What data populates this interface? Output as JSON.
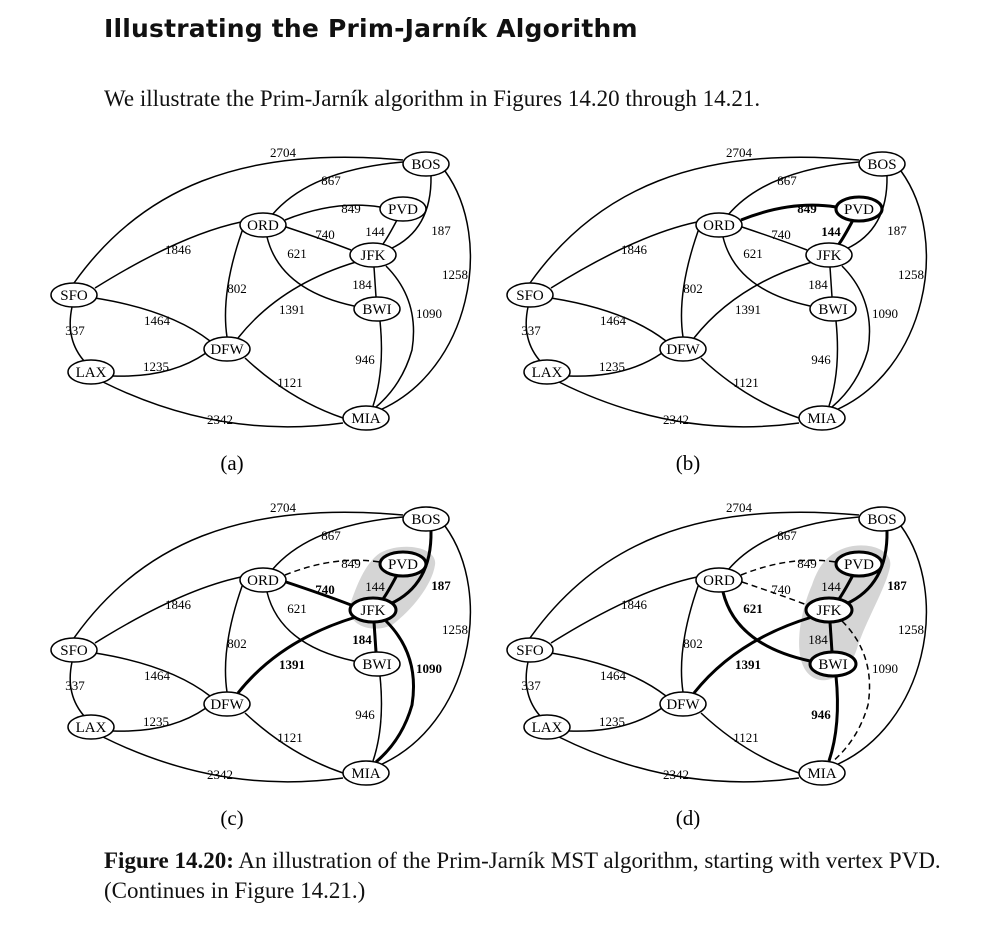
{
  "title": "Illustrating the Prim-Jarník Algorithm",
  "intro": "We illustrate the Prim-Jarník algorithm in Figures 14.20 through 14.21.",
  "graph": {
    "vertices": [
      "BOS",
      "PVD",
      "ORD",
      "JFK",
      "BWI",
      "SFO",
      "DFW",
      "LAX",
      "MIA"
    ],
    "edges": [
      {
        "a": "SFO",
        "b": "BOS",
        "w": "2704"
      },
      {
        "a": "ORD",
        "b": "BOS",
        "w": "867"
      },
      {
        "a": "ORD",
        "b": "PVD",
        "w": "849"
      },
      {
        "a": "PVD",
        "b": "JFK",
        "w": "144"
      },
      {
        "a": "BOS",
        "b": "JFK",
        "w": "187"
      },
      {
        "a": "ORD",
        "b": "JFK",
        "w": "740"
      },
      {
        "a": "ORD",
        "b": "BWI",
        "w": "621"
      },
      {
        "a": "BOS",
        "b": "MIA",
        "w": "1258"
      },
      {
        "a": "SFO",
        "b": "ORD",
        "w": "1846"
      },
      {
        "a": "JFK",
        "b": "BWI",
        "w": "184"
      },
      {
        "a": "ORD",
        "b": "DFW",
        "w": "802"
      },
      {
        "a": "DFW",
        "b": "JFK",
        "w": "1391"
      },
      {
        "a": "JFK",
        "b": "MIA",
        "w": "1090"
      },
      {
        "a": "SFO",
        "b": "LAX",
        "w": "337"
      },
      {
        "a": "SFO",
        "b": "DFW",
        "w": "1464"
      },
      {
        "a": "BWI",
        "b": "MIA",
        "w": "946"
      },
      {
        "a": "LAX",
        "b": "DFW",
        "w": "1235"
      },
      {
        "a": "DFW",
        "b": "MIA",
        "w": "1121"
      },
      {
        "a": "LAX",
        "b": "MIA",
        "w": "2342"
      }
    ]
  },
  "panels": [
    {
      "label": "(a)",
      "shaded": [],
      "bold_vertices": [],
      "mst": [],
      "dashed": [],
      "bold_weights": []
    },
    {
      "label": "(b)",
      "shaded": [
        "PVD"
      ],
      "bold_vertices": [
        "PVD"
      ],
      "mst": [],
      "dashed": [],
      "bold_weights": [
        "849",
        "144"
      ]
    },
    {
      "label": "(c)",
      "shaded": [
        "PVD",
        "JFK"
      ],
      "bold_vertices": [
        "PVD",
        "JFK"
      ],
      "mst": [
        "144"
      ],
      "dashed": [
        "849"
      ],
      "bold_weights": [
        "740",
        "187",
        "184",
        "1391",
        "1090"
      ]
    },
    {
      "label": "(d)",
      "shaded": [
        "PVD",
        "JFK",
        "BWI"
      ],
      "bold_vertices": [
        "PVD",
        "JFK",
        "BWI"
      ],
      "mst": [
        "144",
        "184"
      ],
      "dashed": [
        "849",
        "740",
        "1090"
      ],
      "bold_weights": [
        "187",
        "621",
        "1391",
        "946"
      ]
    }
  ],
  "caption": {
    "figure_ref": "Figure 14.20:",
    "text": "An illustration of the Prim-Jarník MST algorithm, starting with vertex PVD. (Continues in Figure 14.21.)"
  }
}
